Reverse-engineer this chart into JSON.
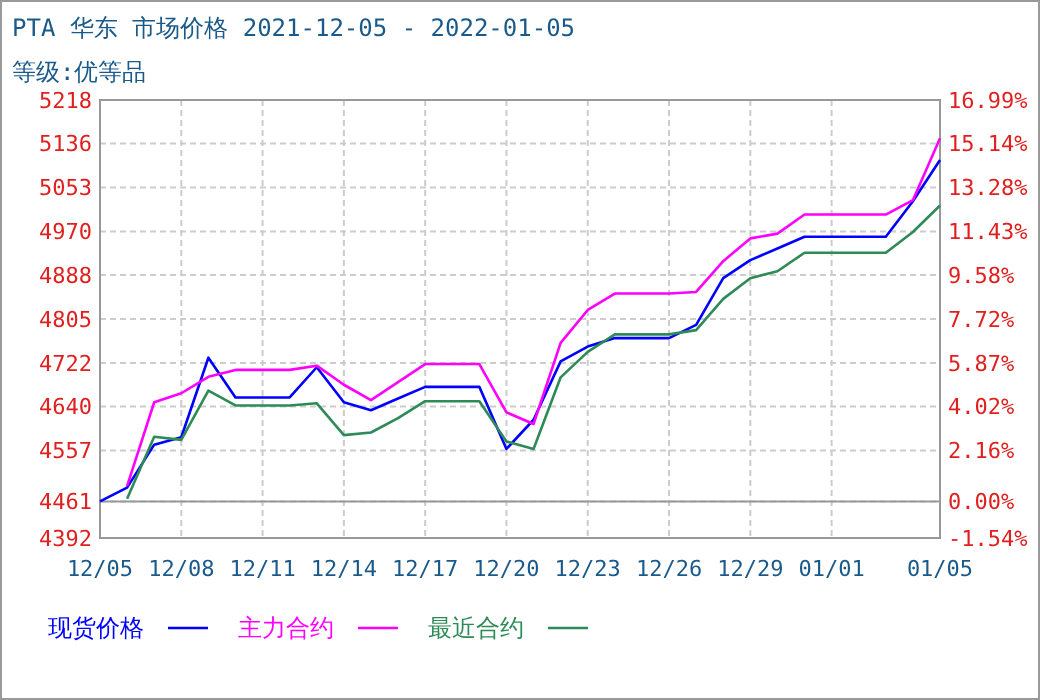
{
  "chart_data": {
    "type": "line",
    "title": "PTA 华东 市场价格 2021-12-05 - 2022-01-05",
    "subtitle": "等级:优等品",
    "x": [
      "2021-12-05",
      "2021-12-06",
      "2021-12-07",
      "2021-12-08",
      "2021-12-09",
      "2021-12-10",
      "2021-12-11",
      "2021-12-12",
      "2021-12-13",
      "2021-12-14",
      "2021-12-15",
      "2021-12-16",
      "2021-12-17",
      "2021-12-18",
      "2021-12-19",
      "2021-12-20",
      "2021-12-21",
      "2021-12-22",
      "2021-12-23",
      "2021-12-24",
      "2021-12-25",
      "2021-12-26",
      "2021-12-27",
      "2021-12-28",
      "2021-12-29",
      "2021-12-30",
      "2021-12-31",
      "2022-01-01",
      "2022-01-02",
      "2022-01-03",
      "2022-01-04",
      "2022-01-05"
    ],
    "series": [
      {
        "name": "现货价格",
        "color": "#0000ff",
        "values": [
          4461,
          4487,
          4568,
          4582,
          4732,
          4657,
          4657,
          4657,
          4714,
          4648,
          4633,
          4655,
          4677,
          4677,
          4677,
          4560,
          4615,
          4725,
          4753,
          4769,
          4769,
          4769,
          4794,
          4882,
          4916,
          4938,
          4960,
          4960,
          4960,
          4960,
          5027,
          5105
        ]
      },
      {
        "name": "主力合约",
        "color": "#ff00ff",
        "values": [
          null,
          4490,
          4648,
          4665,
          4696,
          4709,
          4709,
          4709,
          4717,
          4681,
          4652,
          4686,
          4720,
          4720,
          4720,
          4629,
          4607,
          4760,
          4822,
          4853,
          4853,
          4853,
          4856,
          4914,
          4957,
          4966,
          5002,
          5002,
          5002,
          5002,
          5029,
          5146
        ]
      },
      {
        "name": "最近合约",
        "color": "#2e8b57",
        "values": [
          null,
          4466,
          4583,
          4577,
          4670,
          4642,
          4642,
          4642,
          4646,
          4586,
          4591,
          4618,
          4650,
          4650,
          4650,
          4574,
          4560,
          4695,
          4743,
          4776,
          4776,
          4776,
          4784,
          4843,
          4882,
          4895,
          4930,
          4930,
          4930,
          4930,
          4969,
          5019
        ]
      }
    ],
    "xlim": [
      "2021-12-05",
      "2022-01-05"
    ],
    "xticks": [
      {
        "value": "2021-12-05",
        "label": "12/05"
      },
      {
        "value": "2021-12-08",
        "label": "12/08"
      },
      {
        "value": "2021-12-11",
        "label": "12/11"
      },
      {
        "value": "2021-12-14",
        "label": "12/14"
      },
      {
        "value": "2021-12-17",
        "label": "12/17"
      },
      {
        "value": "2021-12-20",
        "label": "12/20"
      },
      {
        "value": "2021-12-23",
        "label": "12/23"
      },
      {
        "value": "2021-12-26",
        "label": "12/26"
      },
      {
        "value": "2021-12-29",
        "label": "12/29"
      },
      {
        "value": "2022-01-01",
        "label": "01/01"
      },
      {
        "value": "2022-01-05",
        "label": "01/05"
      }
    ],
    "ylim": [
      4392,
      5218
    ],
    "yticks": [
      4392,
      4461,
      4557,
      4640,
      4722,
      4805,
      4888,
      4970,
      5053,
      5136,
      5218
    ],
    "y2lim": [
      -1.54,
      16.99
    ],
    "y2ticks": [
      {
        "value": -1.54,
        "label": "-1.54%"
      },
      {
        "value": 0,
        "label": "0.00%"
      },
      {
        "value": 2.16,
        "label": "2.16%"
      },
      {
        "value": 4.02,
        "label": "4.02%"
      },
      {
        "value": 5.87,
        "label": "5.87%"
      },
      {
        "value": 7.72,
        "label": "7.72%"
      },
      {
        "value": 9.58,
        "label": "9.58%"
      },
      {
        "value": 11.43,
        "label": "11.43%"
      },
      {
        "value": 13.28,
        "label": "13.28%"
      },
      {
        "value": 15.14,
        "label": "15.14%"
      },
      {
        "value": 16.99,
        "label": "16.99%"
      }
    ],
    "grid": true,
    "legend": "bottom",
    "line_style": "solid",
    "marker": "none"
  }
}
